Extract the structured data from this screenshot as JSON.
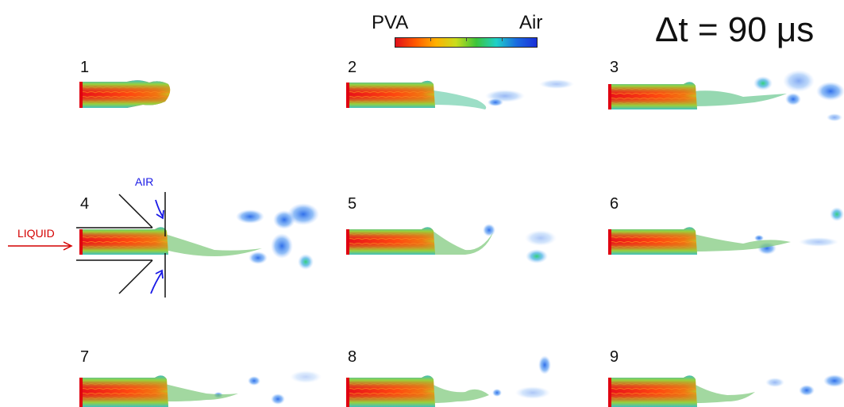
{
  "colorbar": {
    "left_label": "PVA",
    "right_label": "Air",
    "colors": [
      "#e0101a",
      "#ff5a00",
      "#ffb000",
      "#c9dc1e",
      "#3dc43a",
      "#1fd0c8",
      "#1a6be0",
      "#1a2fd8"
    ]
  },
  "time_step": {
    "label": "Δt = 90 μs"
  },
  "panels": [
    {
      "number": "1"
    },
    {
      "number": "2"
    },
    {
      "number": "3"
    },
    {
      "number": "4"
    },
    {
      "number": "5"
    },
    {
      "number": "6"
    },
    {
      "number": "7"
    },
    {
      "number": "8"
    },
    {
      "number": "9"
    }
  ],
  "nozzle": {
    "liquid_label": "LIQUID",
    "air_label": "AIR",
    "liquid_color": "#d40000",
    "air_color": "#1a1ae6"
  }
}
